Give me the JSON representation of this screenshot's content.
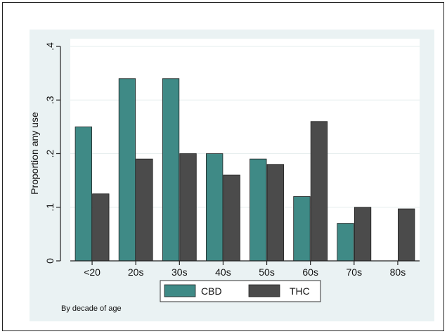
{
  "chart_data": {
    "type": "bar",
    "categories": [
      "<20",
      "20s",
      "30s",
      "40s",
      "50s",
      "60s",
      "70s",
      "80s"
    ],
    "series": [
      {
        "name": "CBD",
        "values": [
          0.25,
          0.34,
          0.34,
          0.2,
          0.19,
          0.12,
          0.07,
          null
        ]
      },
      {
        "name": "THC",
        "values": [
          0.125,
          0.19,
          0.2,
          0.16,
          0.18,
          0.26,
          0.1,
          0.097
        ]
      }
    ],
    "colors": {
      "CBD": "#3f8a86",
      "THC": "#4b4b4b"
    },
    "ylabel": "Proportion any use",
    "ylim": [
      0,
      0.4
    ],
    "yticks": [
      {
        "value": 0,
        "label": "0"
      },
      {
        "value": 0.1,
        "label": ".1"
      },
      {
        "value": 0.2,
        "label": ".2"
      },
      {
        "value": 0.3,
        "label": ".3"
      },
      {
        "value": 0.4,
        "label": ".4"
      }
    ],
    "grid": true,
    "legend_position": "bottom",
    "note": "By decade of age"
  }
}
